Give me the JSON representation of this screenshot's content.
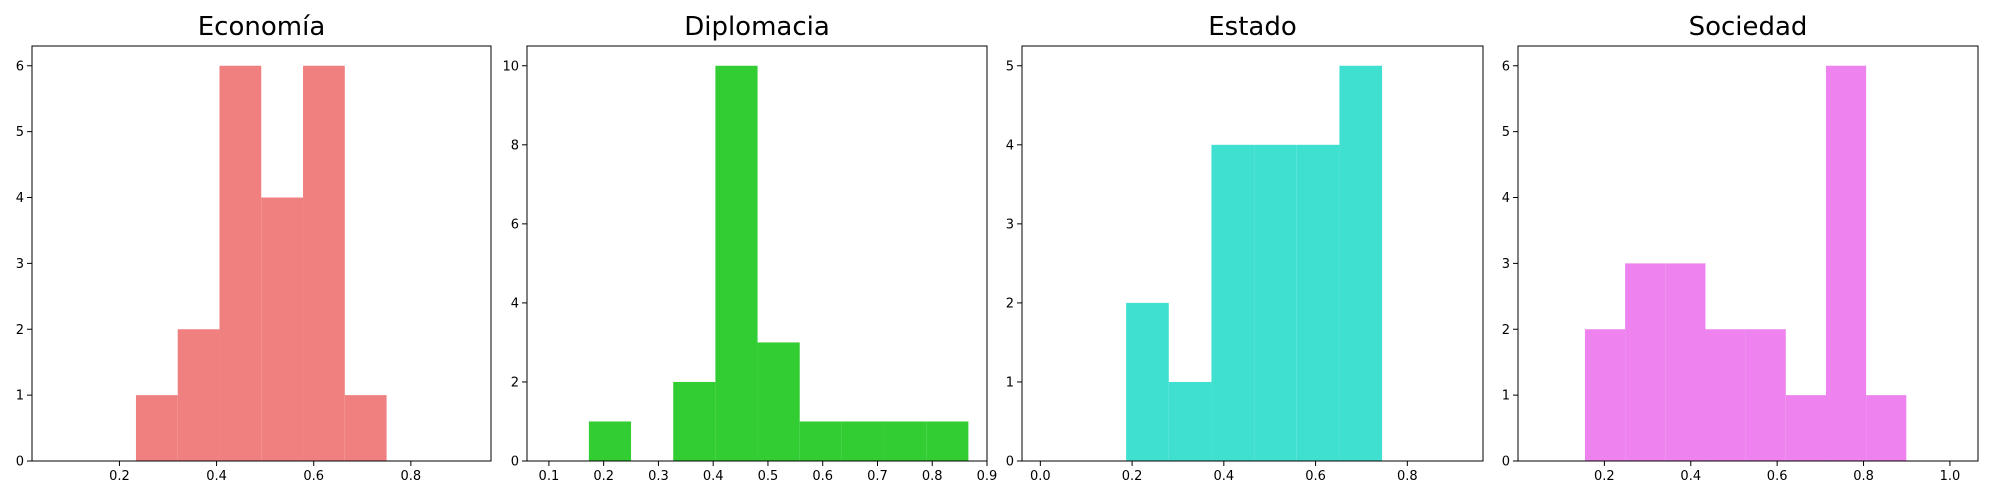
{
  "chart_data": [
    {
      "type": "bar",
      "title": "Economía",
      "color": "#f08080",
      "xlim": [
        0.02,
        0.965
      ],
      "ylim": [
        0,
        6.3
      ],
      "xticks": [
        "0.2",
        "0.4",
        "0.6",
        "0.8"
      ],
      "yticks": [
        "0",
        "1",
        "2",
        "3",
        "4",
        "5",
        "6"
      ],
      "bins": [
        {
          "x0": 0.234,
          "x1": 0.32,
          "value": 1
        },
        {
          "x0": 0.32,
          "x1": 0.406,
          "value": 2
        },
        {
          "x0": 0.406,
          "x1": 0.492,
          "value": 6
        },
        {
          "x0": 0.492,
          "x1": 0.578,
          "value": 4
        },
        {
          "x0": 0.578,
          "x1": 0.664,
          "value": 6
        },
        {
          "x0": 0.664,
          "x1": 0.75,
          "value": 1
        }
      ]
    },
    {
      "type": "bar",
      "title": "Diplomacia",
      "color": "#32cd32",
      "xlim": [
        0.06,
        0.9
      ],
      "ylim": [
        0,
        10.5
      ],
      "xticks": [
        "0.1",
        "0.2",
        "0.3",
        "0.4",
        "0.5",
        "0.6",
        "0.7",
        "0.8",
        "0.9"
      ],
      "yticks": [
        "0",
        "2",
        "4",
        "6",
        "8",
        "10"
      ],
      "bins": [
        {
          "x0": 0.173,
          "x1": 0.25,
          "value": 1
        },
        {
          "x0": 0.25,
          "x1": 0.327,
          "value": 0
        },
        {
          "x0": 0.327,
          "x1": 0.404,
          "value": 2
        },
        {
          "x0": 0.404,
          "x1": 0.481,
          "value": 10
        },
        {
          "x0": 0.481,
          "x1": 0.558,
          "value": 3
        },
        {
          "x0": 0.558,
          "x1": 0.635,
          "value": 1
        },
        {
          "x0": 0.635,
          "x1": 0.712,
          "value": 1
        },
        {
          "x0": 0.712,
          "x1": 0.789,
          "value": 1
        },
        {
          "x0": 0.789,
          "x1": 0.866,
          "value": 1
        }
      ]
    },
    {
      "type": "bar",
      "title": "Estado",
      "color": "#40e0d0",
      "xlim": [
        -0.04,
        0.965
      ],
      "ylim": [
        0,
        5.25
      ],
      "xticks": [
        "0.0",
        "0.2",
        "0.4",
        "0.6",
        "0.8"
      ],
      "yticks": [
        "0",
        "1",
        "2",
        "3",
        "4",
        "5"
      ],
      "bins": [
        {
          "x0": 0.187,
          "x1": 0.28,
          "value": 2
        },
        {
          "x0": 0.28,
          "x1": 0.373,
          "value": 1
        },
        {
          "x0": 0.373,
          "x1": 0.466,
          "value": 4
        },
        {
          "x0": 0.466,
          "x1": 0.559,
          "value": 4
        },
        {
          "x0": 0.559,
          "x1": 0.652,
          "value": 4
        },
        {
          "x0": 0.652,
          "x1": 0.745,
          "value": 5
        }
      ]
    },
    {
      "type": "bar",
      "title": "Sociedad",
      "color": "#ee82ee",
      "xlim": [
        0.0,
        1.065
      ],
      "ylim": [
        0,
        6.3
      ],
      "xticks": [
        "0.2",
        "0.4",
        "0.6",
        "0.8",
        "1.0"
      ],
      "yticks": [
        "0",
        "1",
        "2",
        "3",
        "4",
        "5",
        "6"
      ],
      "bins": [
        {
          "x0": 0.155,
          "x1": 0.248,
          "value": 2
        },
        {
          "x0": 0.248,
          "x1": 0.341,
          "value": 3
        },
        {
          "x0": 0.341,
          "x1": 0.434,
          "value": 3
        },
        {
          "x0": 0.434,
          "x1": 0.527,
          "value": 2
        },
        {
          "x0": 0.527,
          "x1": 0.62,
          "value": 2
        },
        {
          "x0": 0.62,
          "x1": 0.713,
          "value": 1
        },
        {
          "x0": 0.713,
          "x1": 0.806,
          "value": 6
        },
        {
          "x0": 0.806,
          "x1": 0.899,
          "value": 1
        }
      ]
    }
  ]
}
